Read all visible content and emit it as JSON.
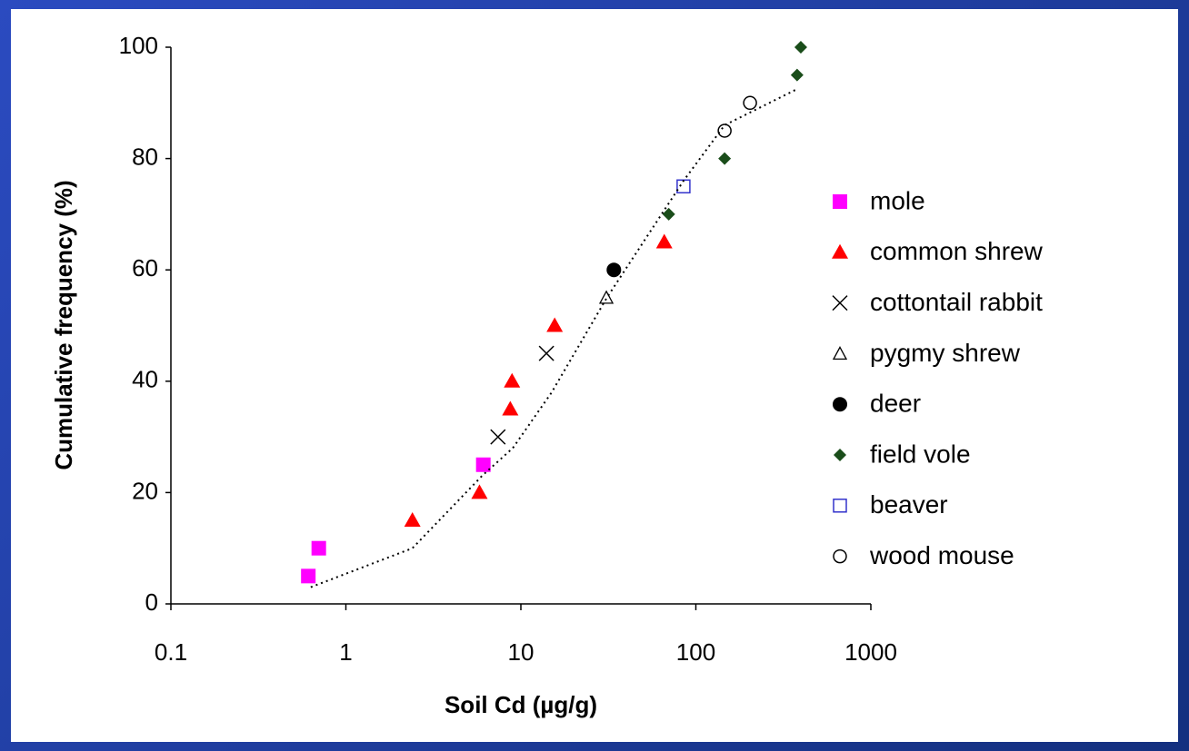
{
  "chart_data": {
    "type": "scatter",
    "x_label": "Soil Cd (µg/g)",
    "y_label": "Cumulative frequency (%)",
    "x_scale": "log",
    "xlim": [
      0.1,
      1000
    ],
    "xticks": [
      0.1,
      1,
      10,
      100,
      1000
    ],
    "ylim": [
      0,
      100
    ],
    "yticks": [
      0,
      20,
      40,
      60,
      80,
      100
    ],
    "grid": false,
    "legend": "right",
    "series": [
      {
        "name": "mole",
        "marker": "square",
        "color": "#ff00ff",
        "x": [
          0.61,
          0.7,
          6.1
        ],
        "values": [
          5,
          10,
          25
        ]
      },
      {
        "name": "common shrew",
        "marker": "triangle",
        "color": "#ff0000",
        "x": [
          2.4,
          5.8,
          8.7,
          8.9,
          15.6,
          66
        ],
        "values": [
          15,
          20,
          35,
          40,
          50,
          65
        ]
      },
      {
        "name": "cottontail rabbit",
        "marker": "cross",
        "color": "#000000",
        "x": [
          7.4,
          14
        ],
        "values": [
          30,
          45
        ]
      },
      {
        "name": "pygmy shrew",
        "marker": "open-triangle",
        "color": "#000000",
        "x": [
          30.8
        ],
        "values": [
          55
        ]
      },
      {
        "name": "deer",
        "marker": "circle",
        "color": "#000000",
        "x": [
          34
        ],
        "values": [
          60
        ]
      },
      {
        "name": "field vole",
        "marker": "diamond",
        "color": "#1a4d1a",
        "x": [
          70,
          146,
          379,
          398
        ],
        "values": [
          70,
          80,
          95,
          100
        ]
      },
      {
        "name": "beaver",
        "marker": "open-square",
        "color": "#3333cc",
        "x": [
          85
        ],
        "values": [
          75
        ]
      },
      {
        "name": "wood mouse",
        "marker": "open-circle",
        "color": "#000000",
        "x": [
          146,
          204
        ],
        "values": [
          85,
          90
        ]
      },
      {
        "marker": "dotted-line",
        "color": "#000000",
        "x": [
          0.63,
          2.4,
          6,
          9,
          15,
          31,
          85,
          146,
          380
        ],
        "values": [
          3,
          10,
          23,
          28,
          38,
          55,
          76,
          86,
          92.5
        ]
      }
    ]
  }
}
